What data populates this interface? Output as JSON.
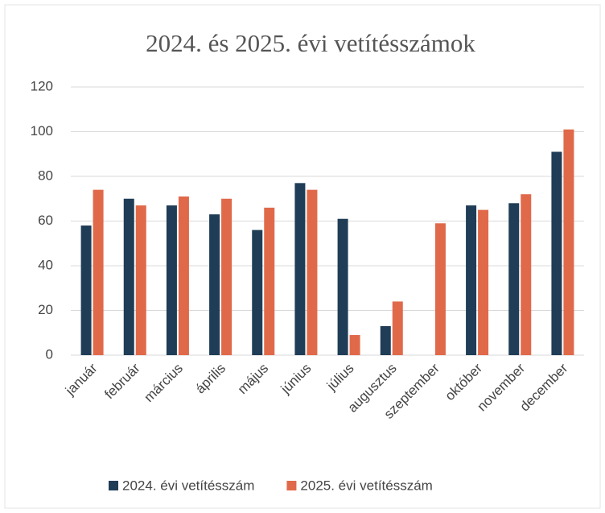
{
  "chart_data": {
    "type": "bar",
    "title": "2024. és 2025. évi vetítésszámok",
    "categories": [
      "január",
      "február",
      "március",
      "április",
      "május",
      "június",
      "július",
      "augusztus",
      "szeptember",
      "október",
      "november",
      "december"
    ],
    "series": [
      {
        "name": "2024. évi vetítésszám",
        "color": "#1f3d56",
        "values": [
          58,
          70,
          67,
          63,
          56,
          77,
          61,
          13,
          null,
          67,
          68,
          91
        ]
      },
      {
        "name": "2025. évi vetítésszám",
        "color": "#e0694a",
        "values": [
          74,
          67,
          71,
          70,
          66,
          74,
          9,
          24,
          59,
          65,
          72,
          101
        ]
      }
    ],
    "ylim": [
      0,
      120
    ],
    "yticks": [
      0,
      20,
      40,
      60,
      80,
      100,
      120
    ],
    "grid": true,
    "legend": "bottom"
  }
}
